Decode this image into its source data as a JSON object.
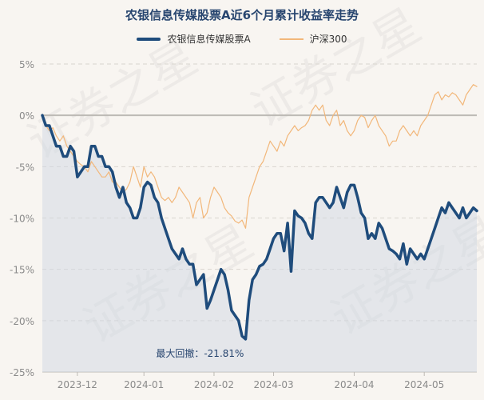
{
  "chart_data": {
    "type": "line",
    "title": "农银信息传媒股票A近6个月累计收益率走势",
    "xlabel": "",
    "ylabel": "",
    "ylim": [
      -25,
      5
    ],
    "y_ticks": [
      5,
      0,
      -5,
      -10,
      -15,
      -20,
      -25
    ],
    "y_tick_labels": [
      "5%",
      "0%",
      "-5%",
      "-10%",
      "-15%",
      "-20%",
      "-25%"
    ],
    "x_tick_positions": [
      10,
      29,
      49,
      66,
      89,
      109
    ],
    "x_tick_labels": [
      "2023-12",
      "2024-01",
      "2024-02",
      "2024-03",
      "2024-04",
      "2024-05"
    ],
    "n_points": 125,
    "series": [
      {
        "name": "农银信息传媒股票A",
        "color": "#1f4c7c",
        "points": [
          [
            0,
            0
          ],
          [
            1,
            -1
          ],
          [
            2,
            -1
          ],
          [
            3,
            -2
          ],
          [
            4,
            -3
          ],
          [
            5,
            -3
          ],
          [
            6,
            -4
          ],
          [
            7,
            -4
          ],
          [
            8,
            -3
          ],
          [
            9,
            -3.5
          ],
          [
            10,
            -6
          ],
          [
            11,
            -5.5
          ],
          [
            12,
            -5
          ],
          [
            13,
            -5
          ],
          [
            14,
            -3
          ],
          [
            15,
            -3
          ],
          [
            16,
            -4
          ],
          [
            17,
            -4
          ],
          [
            18,
            -5
          ],
          [
            19,
            -5
          ],
          [
            20,
            -5.5
          ],
          [
            21,
            -7
          ],
          [
            22,
            -8
          ],
          [
            23,
            -7
          ],
          [
            24,
            -8.5
          ],
          [
            25,
            -9
          ],
          [
            26,
            -10
          ],
          [
            27,
            -10
          ],
          [
            28,
            -9
          ],
          [
            29,
            -7
          ],
          [
            30,
            -6.5
          ],
          [
            31,
            -6.8
          ],
          [
            32,
            -8
          ],
          [
            33,
            -8.5
          ],
          [
            34,
            -10
          ],
          [
            35,
            -11
          ],
          [
            36,
            -12
          ],
          [
            37,
            -13
          ],
          [
            38,
            -13.5
          ],
          [
            39,
            -14
          ],
          [
            40,
            -13
          ],
          [
            41,
            -14
          ],
          [
            42,
            -14.5
          ],
          [
            43,
            -14.5
          ],
          [
            44,
            -16.5
          ],
          [
            45,
            -16
          ],
          [
            46,
            -15.5
          ],
          [
            47,
            -18.8
          ],
          [
            48,
            -18
          ],
          [
            49,
            -17
          ],
          [
            50,
            -16
          ],
          [
            51,
            -15
          ],
          [
            52,
            -15.5
          ],
          [
            53,
            -17
          ],
          [
            54,
            -19
          ],
          [
            55,
            -19.5
          ],
          [
            56,
            -20
          ],
          [
            57,
            -21.5
          ],
          [
            58,
            -21.8
          ],
          [
            59,
            -18
          ],
          [
            60,
            -16
          ],
          [
            61,
            -15.5
          ],
          [
            62,
            -14.7
          ],
          [
            63,
            -14.5
          ],
          [
            64,
            -14
          ],
          [
            65,
            -13
          ],
          [
            66,
            -12
          ],
          [
            67,
            -11.5
          ],
          [
            68,
            -11.5
          ],
          [
            69,
            -13.2
          ],
          [
            70,
            -10.5
          ],
          [
            71,
            -15.2
          ],
          [
            72,
            -9.3
          ],
          [
            73,
            -9.8
          ],
          [
            74,
            -10
          ],
          [
            75,
            -10.5
          ],
          [
            76,
            -11.5
          ],
          [
            77,
            -12
          ],
          [
            78,
            -8.5
          ],
          [
            79,
            -8
          ],
          [
            80,
            -8
          ],
          [
            81,
            -8.5
          ],
          [
            82,
            -9
          ],
          [
            83,
            -8.5
          ],
          [
            84,
            -7
          ],
          [
            85,
            -8
          ],
          [
            86,
            -9
          ],
          [
            87,
            -7.5
          ],
          [
            88,
            -6.8
          ],
          [
            89,
            -6.8
          ],
          [
            90,
            -8
          ],
          [
            91,
            -9.5
          ],
          [
            92,
            -10
          ],
          [
            93,
            -12
          ],
          [
            94,
            -11.5
          ],
          [
            95,
            -12
          ],
          [
            96,
            -10.5
          ],
          [
            97,
            -11
          ],
          [
            98,
            -12
          ],
          [
            99,
            -13
          ],
          [
            100,
            -13.2
          ],
          [
            101,
            -13.5
          ],
          [
            102,
            -14
          ],
          [
            103,
            -12.5
          ],
          [
            104,
            -14.5
          ],
          [
            105,
            -13
          ],
          [
            106,
            -13.5
          ],
          [
            107,
            -14
          ],
          [
            108,
            -13.5
          ],
          [
            109,
            -14
          ],
          [
            110,
            -13
          ],
          [
            111,
            -12
          ],
          [
            112,
            -11
          ],
          [
            113,
            -10
          ],
          [
            114,
            -9
          ],
          [
            115,
            -9.5
          ],
          [
            116,
            -8.5
          ],
          [
            117,
            -9
          ],
          [
            118,
            -9.5
          ],
          [
            119,
            -10
          ],
          [
            120,
            -9
          ],
          [
            121,
            -10
          ],
          [
            122,
            -9.5
          ],
          [
            123,
            -9
          ],
          [
            124,
            -9.3
          ]
        ]
      },
      {
        "name": "沪深300",
        "color": "#f2b77a",
        "points": [
          [
            0,
            0
          ],
          [
            1,
            -1
          ],
          [
            2,
            -1.5
          ],
          [
            3,
            -1.2
          ],
          [
            4,
            -2
          ],
          [
            5,
            -2.5
          ],
          [
            6,
            -2
          ],
          [
            7,
            -3
          ],
          [
            8,
            -3.5
          ],
          [
            9,
            -4
          ],
          [
            10,
            -4.5
          ],
          [
            11,
            -4.8
          ],
          [
            12,
            -5
          ],
          [
            13,
            -5.5
          ],
          [
            14,
            -4.5
          ],
          [
            15,
            -5
          ],
          [
            16,
            -5.5
          ],
          [
            17,
            -6
          ],
          [
            18,
            -6
          ],
          [
            19,
            -5.5
          ],
          [
            20,
            -6.5
          ],
          [
            21,
            -6.5
          ],
          [
            22,
            -7
          ],
          [
            23,
            -7.5
          ],
          [
            24,
            -7.2
          ],
          [
            25,
            -6.5
          ],
          [
            26,
            -5
          ],
          [
            27,
            -6
          ],
          [
            28,
            -7
          ],
          [
            29,
            -5
          ],
          [
            30,
            -6
          ],
          [
            31,
            -5.5
          ],
          [
            32,
            -6
          ],
          [
            33,
            -7
          ],
          [
            34,
            -8
          ],
          [
            35,
            -8.3
          ],
          [
            36,
            -8
          ],
          [
            37,
            -8.5
          ],
          [
            38,
            -8
          ],
          [
            39,
            -7
          ],
          [
            40,
            -7.5
          ],
          [
            41,
            -8
          ],
          [
            42,
            -8.5
          ],
          [
            43,
            -10
          ],
          [
            44,
            -8.5
          ],
          [
            45,
            -8
          ],
          [
            46,
            -10
          ],
          [
            47,
            -9.5
          ],
          [
            48,
            -8
          ],
          [
            49,
            -7
          ],
          [
            50,
            -7.5
          ],
          [
            51,
            -8
          ],
          [
            52,
            -9
          ],
          [
            53,
            -9.5
          ],
          [
            54,
            -9.8
          ],
          [
            55,
            -10.3
          ],
          [
            56,
            -10.5
          ],
          [
            57,
            -10.2
          ],
          [
            58,
            -11
          ],
          [
            59,
            -8
          ],
          [
            60,
            -7
          ],
          [
            61,
            -6
          ],
          [
            62,
            -5
          ],
          [
            63,
            -4.5
          ],
          [
            64,
            -3.5
          ],
          [
            65,
            -2.5
          ],
          [
            66,
            -3
          ],
          [
            67,
            -3.5
          ],
          [
            68,
            -2.5
          ],
          [
            69,
            -3
          ],
          [
            70,
            -2
          ],
          [
            71,
            -1.5
          ],
          [
            72,
            -1
          ],
          [
            73,
            -1.5
          ],
          [
            74,
            -1.2
          ],
          [
            75,
            -1
          ],
          [
            76,
            -0.5
          ],
          [
            77,
            0.5
          ],
          [
            78,
            1
          ],
          [
            79,
            0.5
          ],
          [
            80,
            1
          ],
          [
            81,
            -0.5
          ],
          [
            82,
            -1
          ],
          [
            83,
            0
          ],
          [
            84,
            0.5
          ],
          [
            85,
            -1
          ],
          [
            86,
            -0.5
          ],
          [
            87,
            -1.5
          ],
          [
            88,
            -2
          ],
          [
            89,
            -1.5
          ],
          [
            90,
            -0.5
          ],
          [
            91,
            0
          ],
          [
            92,
            -0.2
          ],
          [
            93,
            -1.2
          ],
          [
            94,
            -0.5
          ],
          [
            95,
            0
          ],
          [
            96,
            -1
          ],
          [
            97,
            -1.5
          ],
          [
            98,
            -2
          ],
          [
            99,
            -3
          ],
          [
            100,
            -2.5
          ],
          [
            101,
            -2.5
          ],
          [
            102,
            -1.5
          ],
          [
            103,
            -1
          ],
          [
            104,
            -1.5
          ],
          [
            105,
            -2
          ],
          [
            106,
            -1.5
          ],
          [
            107,
            -2
          ],
          [
            108,
            -1
          ],
          [
            109,
            -0.5
          ],
          [
            110,
            0
          ],
          [
            111,
            1
          ],
          [
            112,
            2
          ],
          [
            113,
            2.3
          ],
          [
            114,
            1.5
          ],
          [
            115,
            2
          ],
          [
            116,
            1.8
          ],
          [
            117,
            2.2
          ],
          [
            118,
            2
          ],
          [
            119,
            1.5
          ],
          [
            120,
            1
          ],
          [
            121,
            2
          ],
          [
            122,
            2.5
          ],
          [
            123,
            3
          ],
          [
            124,
            2.8
          ]
        ]
      }
    ],
    "annotation": {
      "text": "最大回撤：-21.81%",
      "point_index": 58,
      "value": -21.81
    }
  },
  "watermark": "证券之星"
}
